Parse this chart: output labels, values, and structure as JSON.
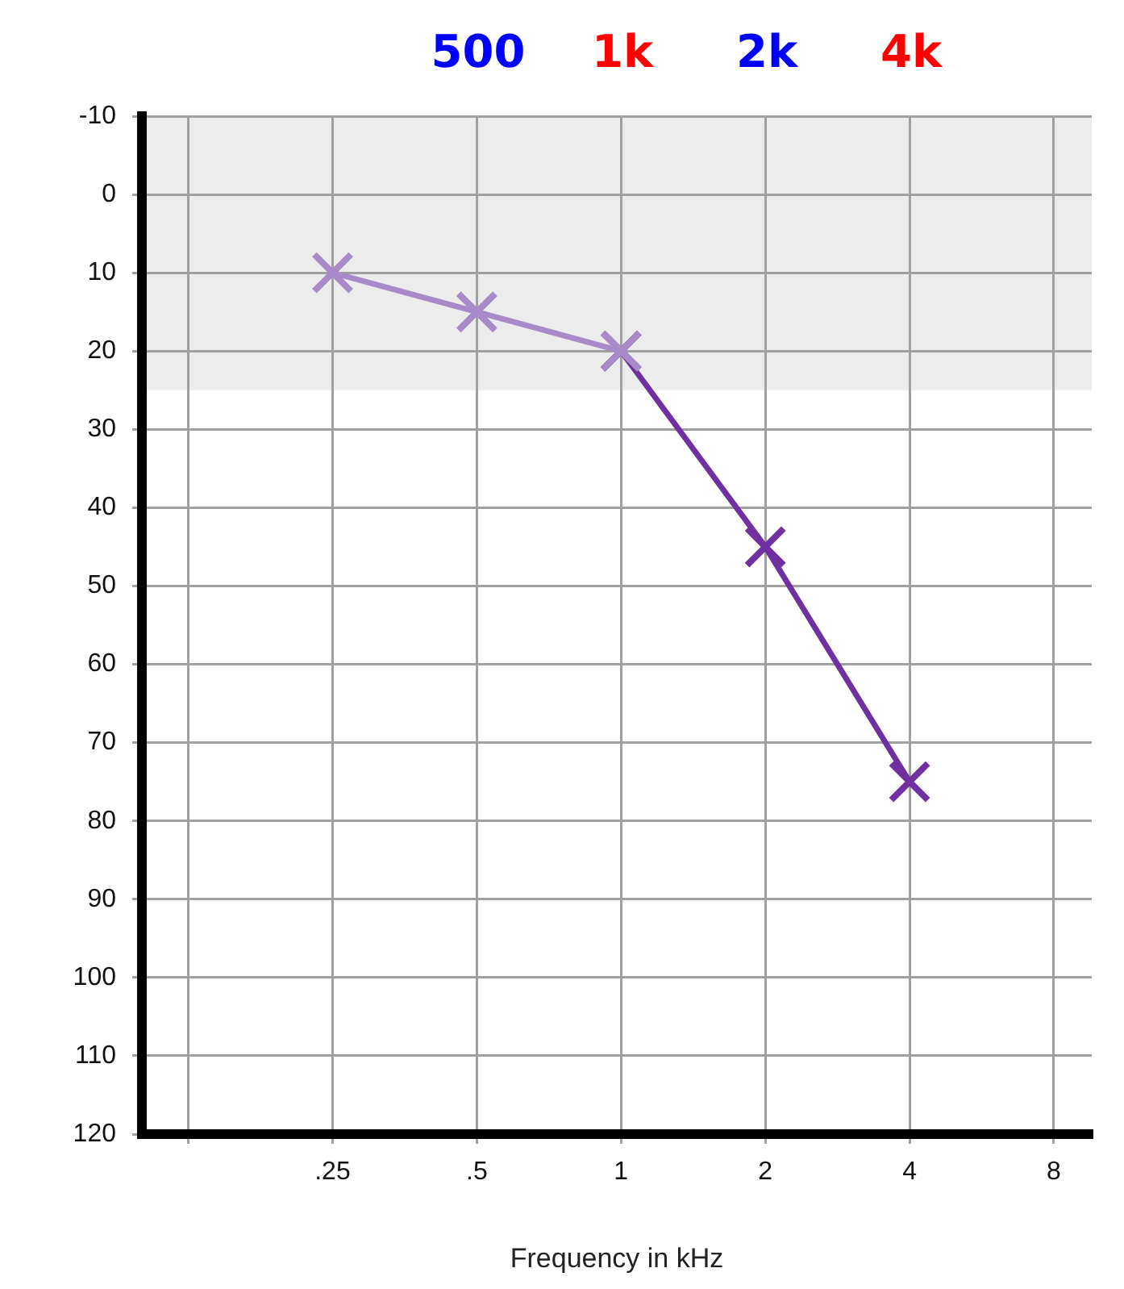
{
  "chart_data": {
    "type": "line",
    "xlabel": "Frequency in kHz",
    "log": "x",
    "xlim": [
      0.1,
      9.6
    ],
    "xticks": [
      {
        "value": 0.125,
        "label": null
      },
      {
        "value": 0.25,
        "label": ".25"
      },
      {
        "value": 0.5,
        "label": ".5"
      },
      1,
      2,
      4,
      8
    ],
    "annotations": [
      "500",
      "1k",
      "2k",
      "4k"
    ],
    "ylim": [
      120,
      -10
    ],
    "yticks": [
      -10,
      0,
      10,
      20,
      30,
      40,
      50,
      60,
      70,
      80,
      90,
      100,
      110,
      120
    ],
    "grid": true,
    "marker": "cross",
    "line_style": "solid",
    "bands": [
      {
        "axis": "y",
        "from": -10,
        "to": 25,
        "color": "#ececec"
      }
    ],
    "series": [
      {
        "color": "#a78bc8",
        "x": [
          0.25,
          0.5,
          1
        ],
        "values": [
          10,
          15,
          20
        ]
      },
      {
        "color": "#7030a0",
        "x": [
          1,
          2,
          4
        ],
        "values": [
          20,
          45,
          75
        ]
      }
    ]
  }
}
